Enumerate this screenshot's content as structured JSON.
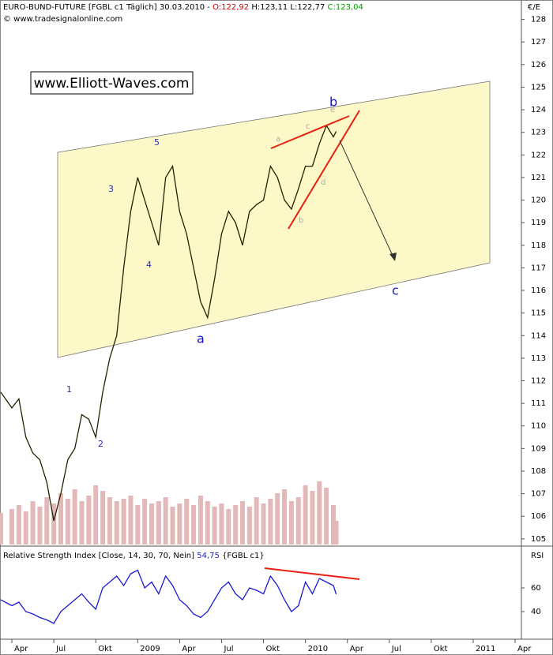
{
  "chart_data": {
    "type": "line",
    "header": {
      "title": "EURO-BUND-FUTURE [FGBL c1  Täglich] 30.03.2010 -",
      "open": "O:122,92",
      "highlow": "H:123,11 L:122,77",
      "close": "C:123,04",
      "source": "© www.tradesignalonline.com",
      "currency": "€/E"
    },
    "watermark": "www.Elliott-Waves.com",
    "annotations": [
      "5",
      "3",
      "4",
      "1",
      "2",
      "a",
      "b",
      "c",
      "a",
      "b",
      "c",
      "d",
      "e"
    ],
    "x": [
      -0.8,
      0,
      0.5,
      1,
      1.5,
      2,
      2.5,
      3,
      3.5,
      4,
      4.5,
      5,
      5.5,
      6,
      6.5,
      7,
      7.5,
      8,
      8.5,
      9,
      9.5,
      10,
      10.5,
      11,
      11.5,
      12,
      12.5,
      13,
      13.5,
      14,
      14.5,
      15,
      15.5,
      16,
      16.5,
      17,
      17.5,
      18,
      18.5,
      19,
      19.5,
      20,
      20.5,
      21,
      21.5,
      22,
      22.5,
      23,
      23.2
    ],
    "series": [
      {
        "name": "FGBL c1",
        "color": "#222200",
        "values": [
          111.5,
          110.8,
          111.2,
          109.5,
          108.8,
          108.5,
          107.5,
          105.8,
          107,
          108.5,
          109,
          110.5,
          110.3,
          109.5,
          111.5,
          113,
          114,
          117,
          119.5,
          121,
          120,
          119,
          118,
          121,
          121.5,
          119.5,
          118.5,
          117,
          115.5,
          114.8,
          116.5,
          118.5,
          119.5,
          119,
          118,
          119.5,
          119.8,
          120,
          121.5,
          121,
          120,
          119.6,
          120.5,
          121.5,
          121.5,
          122.5,
          123.3,
          122.8,
          123.04
        ]
      }
    ],
    "volume": {
      "color": "#e2b8b8",
      "ylim": [
        0,
        100
      ],
      "values": [
        40,
        45,
        50,
        42,
        55,
        48,
        60,
        52,
        65,
        58,
        70,
        55,
        62,
        75,
        68,
        60,
        55,
        58,
        62,
        50,
        58,
        52,
        55,
        60,
        48,
        52,
        58,
        50,
        62,
        55,
        48,
        52,
        45,
        50,
        55,
        48,
        60,
        52,
        58,
        65,
        70,
        55,
        60,
        75,
        68,
        80,
        72,
        50,
        30
      ]
    },
    "xlim": [
      -0.85,
      36.45
    ],
    "xticks": [
      {
        "value": 0,
        "label": "Apr"
      },
      {
        "value": 3,
        "label": "Jul"
      },
      {
        "value": 6,
        "label": "Okt"
      },
      {
        "value": 9,
        "label": "2009"
      },
      {
        "value": 12,
        "label": "Apr"
      },
      {
        "value": 15,
        "label": "Jul"
      },
      {
        "value": 18,
        "label": "Okt"
      },
      {
        "value": 21,
        "label": "2010"
      },
      {
        "value": 24,
        "label": "Apr"
      },
      {
        "value": 27,
        "label": "Jul"
      },
      {
        "value": 30,
        "label": "Okt"
      },
      {
        "value": 33,
        "label": "2011"
      },
      {
        "value": 36,
        "label": "Apr"
      }
    ],
    "ylim": [
      104.75,
      128.3
    ],
    "yticks": [
      105,
      106,
      107,
      108,
      109,
      110,
      111,
      112,
      113,
      114,
      115,
      116,
      117,
      118,
      119,
      120,
      121,
      122,
      123,
      124,
      125,
      126,
      127,
      128
    ],
    "rsi": {
      "title": "Relative Strength Index [Close, 14, 30, 70, Nein]",
      "last": "54,75",
      "symbol": "{FGBL c1}",
      "axis_label": "RSI",
      "color": "#1a1ad0",
      "values": [
        50,
        45,
        48,
        40,
        38,
        35,
        33,
        30,
        40,
        45,
        50,
        55,
        48,
        42,
        60,
        65,
        70,
        62,
        72,
        75,
        60,
        65,
        55,
        70,
        62,
        50,
        45,
        38,
        35,
        40,
        50,
        60,
        65,
        55,
        50,
        60,
        58,
        55,
        70,
        62,
        50,
        40,
        45,
        65,
        55,
        68,
        65,
        62,
        54.75
      ],
      "ylim": [
        20,
        90
      ],
      "yticks": [
        40,
        60
      ]
    }
  }
}
